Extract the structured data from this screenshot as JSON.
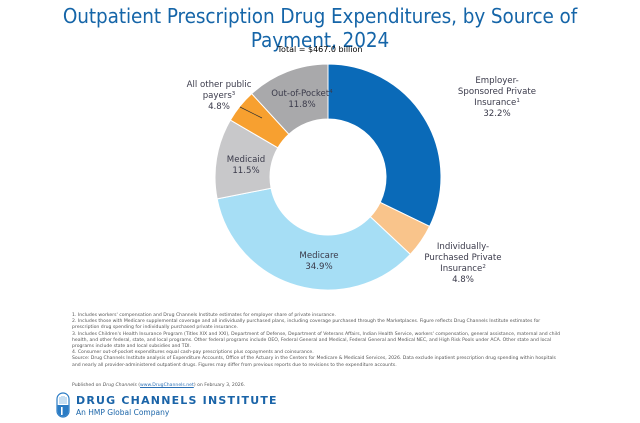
{
  "header": {
    "title": "Outpatient Prescription Drug Expenditures, by Source of Payment, 2024",
    "total": "Total = $467.0 billion"
  },
  "chart_data": {
    "type": "pie",
    "subtype": "donut",
    "title": "Outpatient Prescription Drug Expenditures, by Source of Payment, 2024",
    "subtitle": "Total = $467.0 billion",
    "unit": "percent",
    "slices": [
      {
        "key": "employer",
        "lines": [
          "Employer-",
          "Sponsored Private",
          "Insurance"
        ],
        "sup": "1",
        "value": 32.2,
        "label": "32.2%",
        "color": "#0a6ab8"
      },
      {
        "key": "individual",
        "lines": [
          "Individually-",
          "Purchased Private",
          "Insurance"
        ],
        "sup": "2",
        "value": 4.8,
        "label": "4.8%",
        "color": "#f9c48b"
      },
      {
        "key": "medicare",
        "lines": [
          "Medicare"
        ],
        "sup": "",
        "value": 34.9,
        "label": "34.9%",
        "color": "#a6def5"
      },
      {
        "key": "medicaid",
        "lines": [
          "Medicaid"
        ],
        "sup": "",
        "value": 11.5,
        "label": "11.5%",
        "color": "#c8c8ca"
      },
      {
        "key": "other-public",
        "lines": [
          "All other public",
          "payers"
        ],
        "sup": "3",
        "value": 4.8,
        "label": "4.8%",
        "color": "#f7a030"
      },
      {
        "key": "out-of-pocket",
        "lines": [
          "Out-of-Pocket"
        ],
        "sup": "4",
        "value": 11.8,
        "label": "11.8%",
        "color": "#a9a9ab"
      }
    ],
    "start_angle": "12 o'clock",
    "direction": "clockwise"
  },
  "footnotes": [
    "1. Includes workers' compensation and Drug Channels Institute estimates for employer share of private insurance.",
    "2. Includes those with Medicare supplemental coverage and all individually purchased plans, including coverage purchased through the Marketplaces. Figure reflects Drug Channels Institute estimates for",
    "prescription drug spending for individually purchased private insurance.",
    "3. Includes Children's Health Insurance Program (Titles XIX and XXI), Department of Defense, Department of Veterans Affairs, Indian Health Service, workers' compensation, general assistance, maternal and child",
    "health, and other federal, state, and local programs. Other federal programs include OEO, Federal General and Medical, Federal General and Medical NEC, and High Risk Pools under ACA. Other state and local",
    "programs include state and local subsidies and TDI.",
    "4. Consumer out-of-pocket expenditures equal cash-pay prescriptions plus copayments and coinsurance.",
    "Source: Drug Channels Institute analysis of  Expenditure Accounts, Office of the Actuary in the Centers for Medicare & Medicaid Services, 2026. Data exclude inpatient prescription drug spending within hospitals",
    "and nearly all provider-administered outpatient drugs. Figures may differ from previous reports due to revisions to the expenditure accounts."
  ],
  "published": {
    "prefix": "Published on ",
    "outlet": "Drug Channels",
    "paren_open": " (",
    "link": "www.DrugChannels.net",
    "suffix": ") on February 3, 2026."
  },
  "brand": {
    "name": "DRUG CHANNELS INSTITUTE",
    "tagline": "An HMP Global Company",
    "color": "#1a64a8"
  }
}
